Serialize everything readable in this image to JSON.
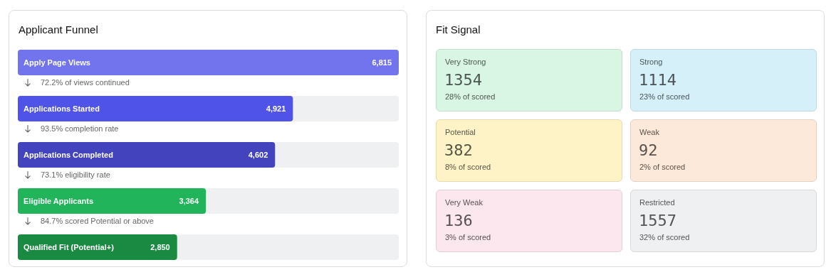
{
  "chart_data": [
    {
      "type": "bar",
      "orientation": "horizontal",
      "title": "Applicant Funnel",
      "categories": [
        "Apply Page Views",
        "Applications Started",
        "Applications Completed",
        "Eligible Applicants",
        "Qualified Fit (Potential+)"
      ],
      "values": [
        6815,
        4921,
        4602,
        3364,
        2850
      ],
      "colors": [
        "#7274ee",
        "#5053e8",
        "#4343be",
        "#22b45b",
        "#1a8a43"
      ],
      "value_labels": [
        "6,815",
        "4,921",
        "4,602",
        "3,364",
        "2,850"
      ],
      "annotations": [
        "72.2% of views continued",
        "93.5% completion rate",
        "73.1% eligibility rate",
        "84.7% scored Potential or above"
      ]
    },
    {
      "type": "other",
      "title": "Fit Signal",
      "categories": [
        "Very Strong",
        "Strong",
        "Potential",
        "Weak",
        "Very Weak",
        "Restricted"
      ],
      "values": [
        1354,
        1114,
        382,
        92,
        136,
        1557
      ],
      "colors": [
        "#d9f6e4",
        "#d5f0f9",
        "#fef2c7",
        "#fde9d9",
        "#fce7ee",
        "#eff0f2"
      ],
      "data_labels": true,
      "annotations": [
        "28% of scored",
        "23% of scored",
        "8% of scored",
        "2% of scored",
        "3% of scored",
        "32% of scored"
      ]
    }
  ]
}
